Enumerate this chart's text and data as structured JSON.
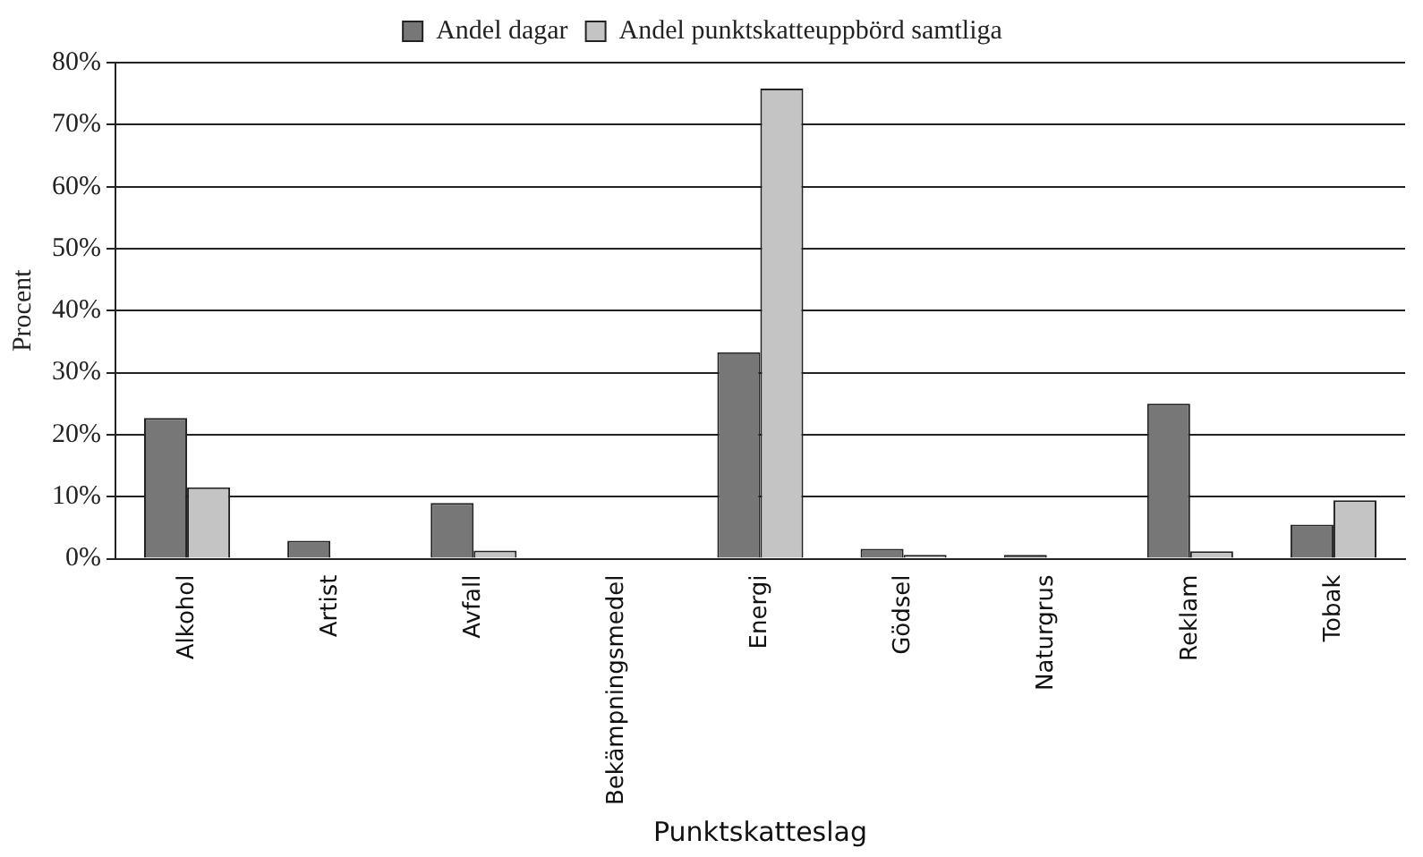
{
  "chart_data": {
    "type": "bar",
    "xlabel": "Punktskatteslag",
    "ylabel": "Procent",
    "categories": [
      "Alkohol",
      "Artist",
      "Avfall",
      "Bekämpningsmedel",
      "Energi",
      "Gödsel",
      "Naturgrus",
      "Reklam",
      "Tobak"
    ],
    "series": [
      {
        "name": "Andel dagar",
        "color": "#777777",
        "values": [
          22.7,
          2.9,
          9.0,
          0,
          33.3,
          1.6,
          0.6,
          25.0,
          5.5
        ]
      },
      {
        "name": "Andel punktskatteuppbörd samtliga",
        "color": "#c4c4c4",
        "values": [
          11.5,
          0,
          1.3,
          0,
          75.8,
          0.6,
          0,
          1.2,
          9.4
        ]
      }
    ],
    "ylim": [
      0,
      80
    ],
    "yticks": [
      {
        "value": 0,
        "label": "0%"
      },
      {
        "value": 10,
        "label": "10%"
      },
      {
        "value": 20,
        "label": "20%"
      },
      {
        "value": 30,
        "label": "30%"
      },
      {
        "value": 40,
        "label": "40%"
      },
      {
        "value": 50,
        "label": "50%"
      },
      {
        "value": 60,
        "label": "60%"
      },
      {
        "value": 70,
        "label": "70%"
      },
      {
        "value": 80,
        "label": "80%"
      }
    ],
    "grid": "y",
    "legend": "top"
  }
}
